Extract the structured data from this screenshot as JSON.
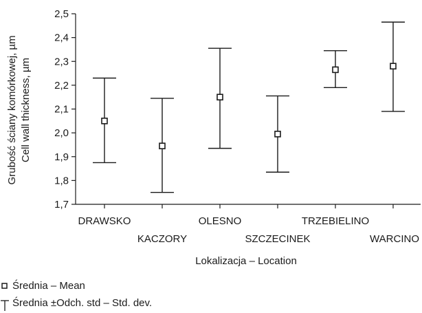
{
  "chart_data": {
    "type": "scatter",
    "categories": [
      "DRAWSKO",
      "KACZORY",
      "OLESNO",
      "SZCZECINEK",
      "TRZEBIELINO",
      "WARCINO"
    ],
    "series": [
      {
        "name": "Średnia – Mean",
        "values": [
          2.05,
          1.945,
          2.15,
          1.995,
          2.265,
          2.28
        ]
      },
      {
        "name": "Średnia ±Odch. std – Std. dev.",
        "lower": [
          1.875,
          1.75,
          1.935,
          1.835,
          2.19,
          2.09
        ],
        "upper": [
          2.23,
          2.145,
          2.355,
          2.155,
          2.345,
          2.465
        ]
      }
    ],
    "ylim": [
      1.7,
      2.5
    ],
    "yticks": [
      "1,7",
      "1,8",
      "1,9",
      "2,0",
      "2,1",
      "2,2",
      "2,3",
      "2,4",
      "2,5"
    ],
    "ylabel_line1": "Grubość ściany komórkowej, µm",
    "ylabel_line2": "Cell wall thickness, µm",
    "xlabel": "Lokalizacja – Location",
    "legend": {
      "mean_label": "Średnia – Mean",
      "sd_label": "Średnia ±Odch. std – Std. dev.",
      "placement": "bottom-left"
    }
  }
}
